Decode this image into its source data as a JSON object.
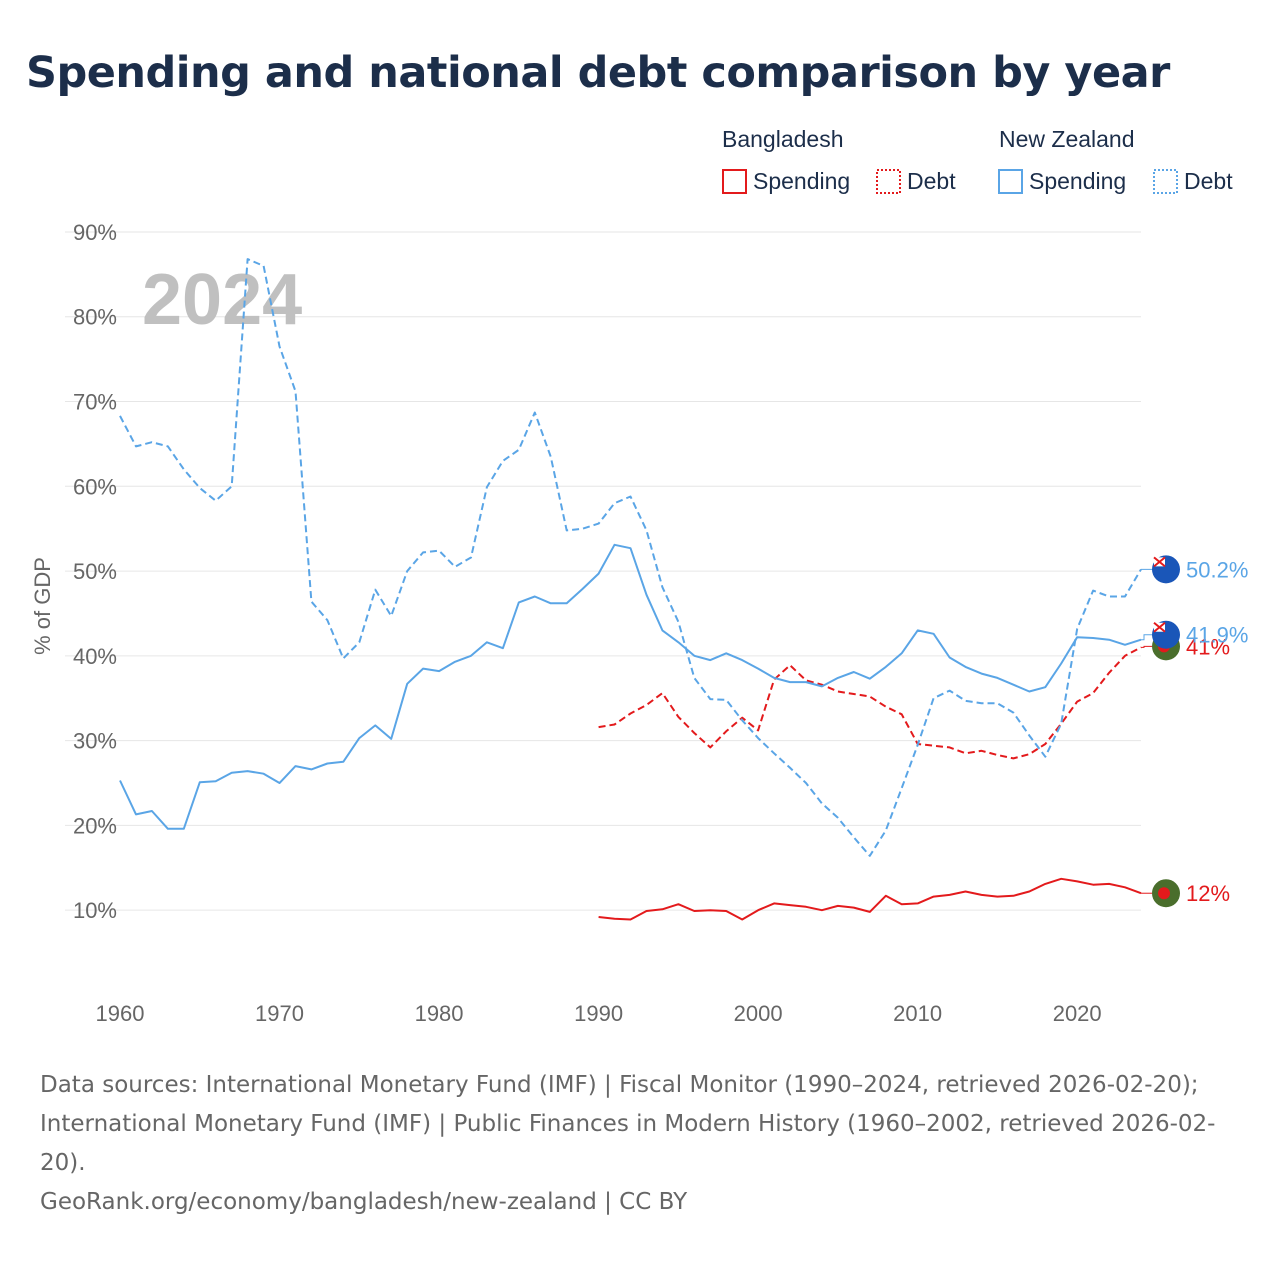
{
  "title": "Spending and national debt comparison by year",
  "legend": {
    "bd_name": "Bangladesh",
    "nz_name": "New Zealand",
    "spending_label": "Spending",
    "debt_label": "Debt"
  },
  "colors": {
    "bangladesh": "#e31a1c",
    "new_zealand": "#5aa5e6",
    "grid": "#e6e6e6",
    "title": "#1c2e4a",
    "year_watermark": "#c0c0c0"
  },
  "chart_data": {
    "type": "line",
    "title": "Spending and national debt comparison by year",
    "year_watermark": "2024",
    "xlabel": "",
    "ylabel": "% of GDP",
    "xlim": [
      1960,
      2024
    ],
    "ylim": [
      2,
      92
    ],
    "x_ticks": [
      1960,
      1970,
      1980,
      1990,
      2000,
      2010,
      2020
    ],
    "y_ticks": [
      10,
      20,
      30,
      40,
      50,
      60,
      70,
      80,
      90
    ],
    "y_tick_labels": [
      "10%",
      "20%",
      "30%",
      "40%",
      "50%",
      "60%",
      "70%",
      "80%",
      "90%"
    ],
    "series": [
      {
        "name": "Bangladesh Spending",
        "country": "Bangladesh",
        "style": "solid",
        "end_label": "12%",
        "x": [
          1990,
          1991,
          1992,
          1993,
          1994,
          1995,
          1996,
          1997,
          1998,
          1999,
          2000,
          2001,
          2002,
          2003,
          2004,
          2005,
          2006,
          2007,
          2008,
          2009,
          2010,
          2011,
          2012,
          2013,
          2014,
          2015,
          2016,
          2017,
          2018,
          2019,
          2020,
          2021,
          2022,
          2023,
          2024
        ],
        "y": [
          9.2,
          9.0,
          8.9,
          9.9,
          10.1,
          10.7,
          9.9,
          10.0,
          9.9,
          8.9,
          10.0,
          10.8,
          10.6,
          10.4,
          10.0,
          10.5,
          10.3,
          9.8,
          11.7,
          10.7,
          10.8,
          11.6,
          11.8,
          12.2,
          11.8,
          11.6,
          11.7,
          12.2,
          13.1,
          13.7,
          13.4,
          13.0,
          13.1,
          12.7,
          12.0
        ]
      },
      {
        "name": "Bangladesh Debt",
        "country": "Bangladesh",
        "style": "dashed",
        "end_label": "41%",
        "x": [
          1990,
          1991,
          1992,
          1993,
          1994,
          1995,
          1996,
          1997,
          1998,
          1999,
          2000,
          2001,
          2002,
          2003,
          2004,
          2005,
          2006,
          2007,
          2008,
          2009,
          2010,
          2011,
          2012,
          2013,
          2014,
          2015,
          2016,
          2017,
          2018,
          2019,
          2020,
          2021,
          2022,
          2023,
          2024
        ],
        "y": [
          31.6,
          31.9,
          33.2,
          34.2,
          35.6,
          32.8,
          30.9,
          29.2,
          31.1,
          32.7,
          31.2,
          37.2,
          38.9,
          37.1,
          36.6,
          35.8,
          35.5,
          35.2,
          34.0,
          33.1,
          29.6,
          29.4,
          29.2,
          28.5,
          28.8,
          28.3,
          27.9,
          28.4,
          29.6,
          32.0,
          34.6,
          35.6,
          38.0,
          40.0,
          41.0
        ]
      },
      {
        "name": "New Zealand Spending",
        "country": "New Zealand",
        "style": "solid",
        "end_label": "41.9%",
        "x": [
          1960,
          1961,
          1962,
          1963,
          1964,
          1965,
          1966,
          1967,
          1968,
          1969,
          1970,
          1971,
          1972,
          1973,
          1974,
          1975,
          1976,
          1977,
          1978,
          1979,
          1980,
          1981,
          1982,
          1983,
          1984,
          1985,
          1986,
          1987,
          1988,
          1989,
          1990,
          1991,
          1992,
          1993,
          1994,
          1995,
          1996,
          1997,
          1998,
          1999,
          2000,
          2001,
          2002,
          2003,
          2004,
          2005,
          2006,
          2007,
          2008,
          2009,
          2010,
          2011,
          2012,
          2013,
          2014,
          2015,
          2016,
          2017,
          2018,
          2019,
          2020,
          2021,
          2022,
          2023,
          2024
        ],
        "y": [
          25.3,
          21.3,
          21.7,
          19.6,
          19.6,
          25.1,
          25.2,
          26.2,
          26.4,
          26.1,
          25.0,
          27.0,
          26.6,
          27.3,
          27.5,
          30.3,
          31.8,
          30.2,
          36.7,
          38.5,
          38.2,
          39.3,
          40.0,
          41.6,
          40.9,
          46.3,
          47.0,
          46.2,
          46.2,
          47.9,
          49.7,
          53.1,
          52.7,
          47.2,
          43.0,
          41.6,
          40.0,
          39.5,
          40.3,
          39.5,
          38.5,
          37.4,
          36.9,
          36.9,
          36.4,
          37.4,
          38.1,
          37.3,
          38.7,
          40.3,
          43.0,
          42.6,
          39.8,
          38.7,
          37.9,
          37.4,
          36.6,
          35.8,
          36.3,
          39.1,
          42.2,
          42.1,
          41.9,
          41.3,
          41.9
        ]
      },
      {
        "name": "New Zealand Debt",
        "country": "New Zealand",
        "style": "dashed",
        "end_label": "50.2%",
        "x": [
          1960,
          1961,
          1962,
          1963,
          1964,
          1965,
          1966,
          1967,
          1968,
          1969,
          1970,
          1971,
          1972,
          1973,
          1974,
          1975,
          1976,
          1977,
          1978,
          1979,
          1980,
          1981,
          1982,
          1983,
          1984,
          1985,
          1986,
          1987,
          1988,
          1989,
          1990,
          1991,
          1992,
          1993,
          1994,
          1995,
          1996,
          1997,
          1998,
          1999,
          2000,
          2001,
          2002,
          2003,
          2004,
          2005,
          2006,
          2007,
          2008,
          2009,
          2010,
          2011,
          2012,
          2013,
          2014,
          2015,
          2016,
          2017,
          2018,
          2019,
          2020,
          2021,
          2022,
          2023,
          2024
        ],
        "y": [
          68.3,
          64.7,
          65.2,
          64.7,
          62.0,
          59.8,
          58.3,
          60.0,
          86.8,
          86.0,
          76.5,
          71.2,
          46.4,
          44.2,
          39.7,
          41.6,
          47.8,
          44.7,
          50.0,
          52.2,
          52.4,
          50.5,
          51.6,
          59.9,
          63.0,
          64.3,
          68.7,
          63.5,
          54.8,
          55.0,
          55.6,
          58.0,
          58.8,
          54.8,
          48.1,
          44.0,
          37.4,
          34.9,
          34.8,
          32.4,
          30.3,
          28.5,
          26.8,
          25.0,
          22.6,
          20.9,
          18.6,
          16.4,
          19.4,
          24.4,
          29.5,
          35.0,
          35.9,
          34.7,
          34.4,
          34.4,
          33.3,
          30.6,
          28.1,
          32.0,
          43.2,
          47.7,
          47.0,
          47.0,
          50.2
        ]
      }
    ]
  },
  "sources": {
    "line1": "Data sources: International Monetary Fund (IMF) | Fiscal Monitor (1990–2024, retrieved 2026-02-20); International Monetary Fund (IMF) | Public Finances in Modern History (1960–2002, retrieved 2026-02-20).",
    "credit": "GeoRank.org/economy/bangladesh/new-zealand | CC BY"
  }
}
